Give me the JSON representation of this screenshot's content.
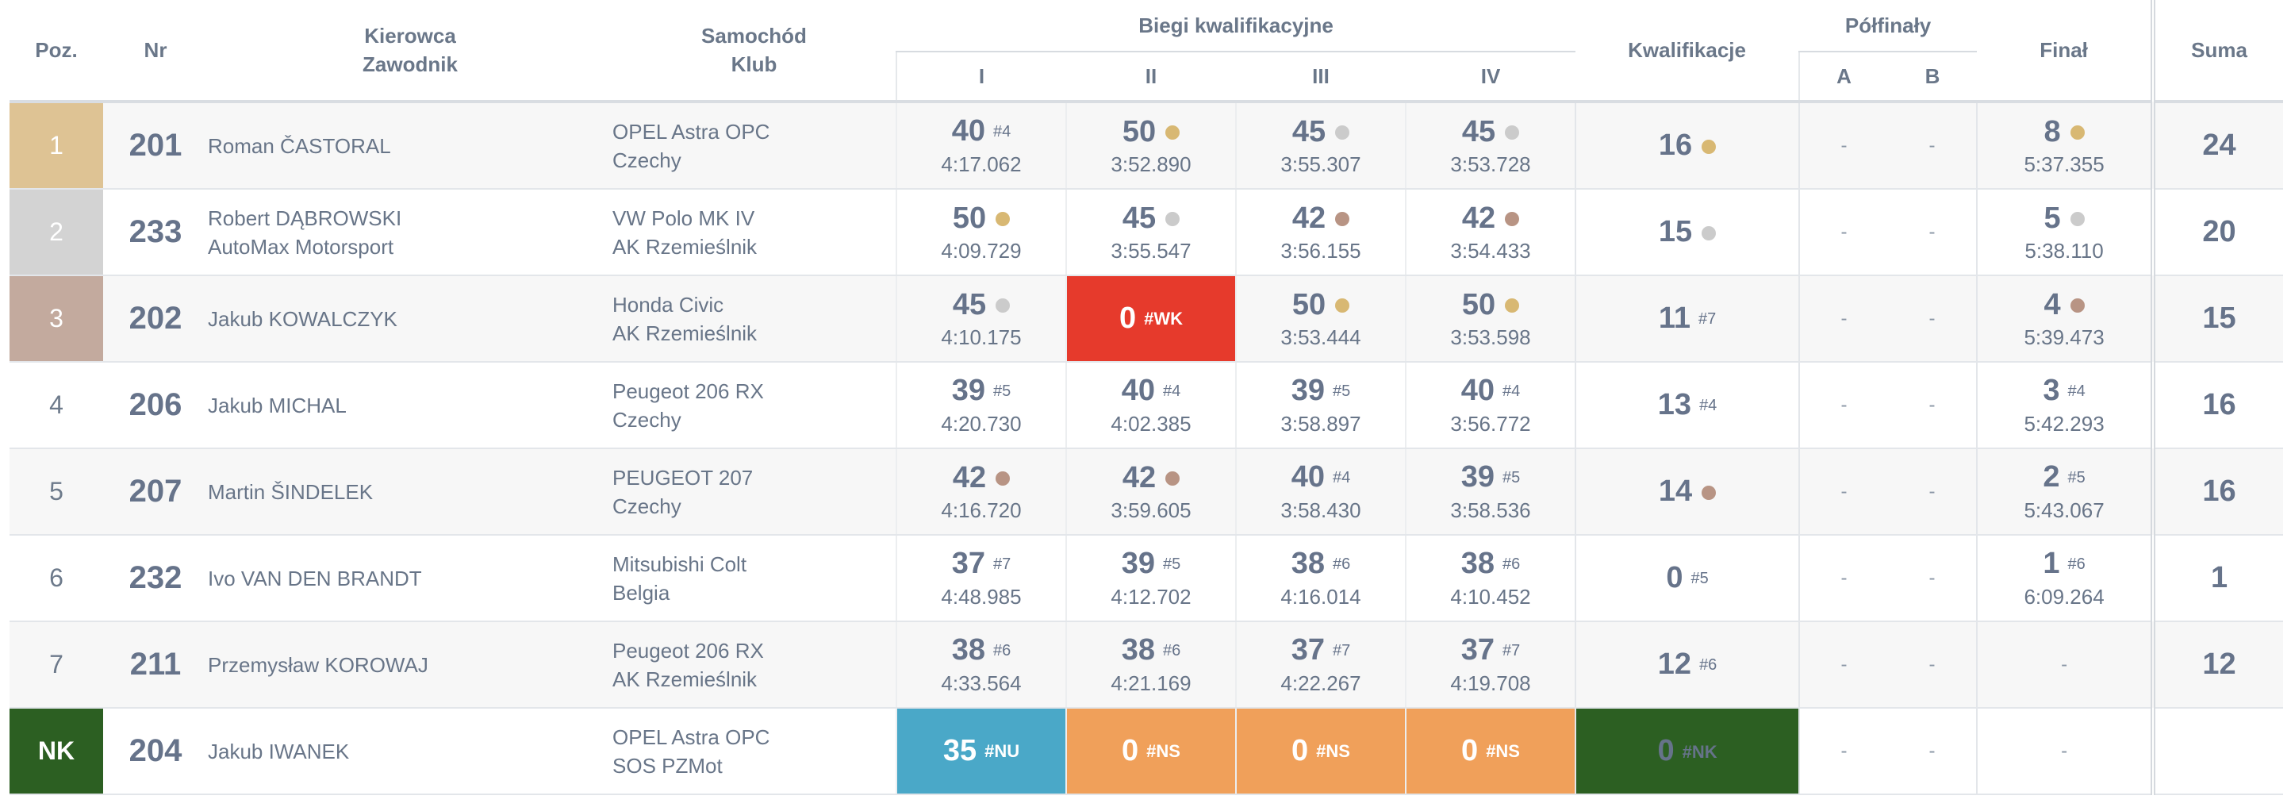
{
  "headers": {
    "pos": "Poz.",
    "nr": "Nr",
    "driver_1": "Kierowca",
    "driver_2": "Zawodnik",
    "car_1": "Samochód",
    "car_2": "Klub",
    "heats_group": "Biegi kwalifikacyjne",
    "heats": [
      "I",
      "II",
      "III",
      "IV"
    ],
    "qual": "Kwalifikacje",
    "semis_group": "Półfinały",
    "semis": [
      "A",
      "B"
    ],
    "final": "Finał",
    "sum": "Suma"
  },
  "colors": {
    "gold": "#dec394",
    "silver": "#d3d3d3",
    "bronze": "#c3aa9e",
    "wk_red": "#e63a2c",
    "nu_blue": "#4aa8c8",
    "ns_orange": "#f0a05a",
    "nk_green": "#2c5f22"
  },
  "rows": [
    {
      "pos": "1",
      "pos_style": "gold",
      "nr": "201",
      "driver": "Roman ČASTORAL",
      "team": "",
      "car": "OPEL Astra OPC",
      "club": "Czechy",
      "heats": [
        {
          "pts": "40",
          "rank": "#4",
          "medal": "",
          "time": "4:17.062",
          "flag": ""
        },
        {
          "pts": "50",
          "rank": "",
          "medal": "gold",
          "time": "3:52.890",
          "flag": ""
        },
        {
          "pts": "45",
          "rank": "",
          "medal": "silver",
          "time": "3:55.307",
          "flag": ""
        },
        {
          "pts": "45",
          "rank": "",
          "medal": "silver",
          "time": "3:53.728",
          "flag": ""
        }
      ],
      "qual": {
        "pts": "16",
        "rank": "",
        "medal": "gold",
        "flag": ""
      },
      "semi_a": "-",
      "semi_b": "-",
      "final": {
        "pts": "8",
        "rank": "",
        "medal": "gold",
        "time": "5:37.355"
      },
      "sum": "24"
    },
    {
      "pos": "2",
      "pos_style": "silver",
      "nr": "233",
      "driver": "Robert DĄBROWSKI",
      "team": "AutoMax Motorsport",
      "car": "VW Polo MK IV",
      "club": "AK Rzemieślnik",
      "heats": [
        {
          "pts": "50",
          "rank": "",
          "medal": "gold",
          "time": "4:09.729",
          "flag": ""
        },
        {
          "pts": "45",
          "rank": "",
          "medal": "silver",
          "time": "3:55.547",
          "flag": ""
        },
        {
          "pts": "42",
          "rank": "",
          "medal": "bronze",
          "time": "3:56.155",
          "flag": ""
        },
        {
          "pts": "42",
          "rank": "",
          "medal": "bronze",
          "time": "3:54.433",
          "flag": ""
        }
      ],
      "qual": {
        "pts": "15",
        "rank": "",
        "medal": "silver",
        "flag": ""
      },
      "semi_a": "-",
      "semi_b": "-",
      "final": {
        "pts": "5",
        "rank": "",
        "medal": "silver",
        "time": "5:38.110"
      },
      "sum": "20"
    },
    {
      "pos": "3",
      "pos_style": "bronze",
      "nr": "202",
      "driver": "Jakub KOWALCZYK",
      "team": "",
      "car": "Honda Civic",
      "club": "AK Rzemieślnik",
      "heats": [
        {
          "pts": "45",
          "rank": "",
          "medal": "silver",
          "time": "4:10.175",
          "flag": ""
        },
        {
          "pts": "0",
          "rank": "#WK",
          "medal": "",
          "time": "",
          "flag": "wk"
        },
        {
          "pts": "50",
          "rank": "",
          "medal": "gold",
          "time": "3:53.444",
          "flag": ""
        },
        {
          "pts": "50",
          "rank": "",
          "medal": "gold",
          "time": "3:53.598",
          "flag": ""
        }
      ],
      "qual": {
        "pts": "11",
        "rank": "#7",
        "medal": "",
        "flag": ""
      },
      "semi_a": "-",
      "semi_b": "-",
      "final": {
        "pts": "4",
        "rank": "",
        "medal": "bronze",
        "time": "5:39.473"
      },
      "sum": "15"
    },
    {
      "pos": "4",
      "pos_style": "",
      "nr": "206",
      "driver": "Jakub MICHAL",
      "team": "",
      "car": "Peugeot 206 RX",
      "club": "Czechy",
      "heats": [
        {
          "pts": "39",
          "rank": "#5",
          "medal": "",
          "time": "4:20.730",
          "flag": ""
        },
        {
          "pts": "40",
          "rank": "#4",
          "medal": "",
          "time": "4:02.385",
          "flag": ""
        },
        {
          "pts": "39",
          "rank": "#5",
          "medal": "",
          "time": "3:58.897",
          "flag": ""
        },
        {
          "pts": "40",
          "rank": "#4",
          "medal": "",
          "time": "3:56.772",
          "flag": ""
        }
      ],
      "qual": {
        "pts": "13",
        "rank": "#4",
        "medal": "",
        "flag": ""
      },
      "semi_a": "-",
      "semi_b": "-",
      "final": {
        "pts": "3",
        "rank": "#4",
        "medal": "",
        "time": "5:42.293"
      },
      "sum": "16"
    },
    {
      "pos": "5",
      "pos_style": "",
      "nr": "207",
      "driver": "Martin ŠINDELEK",
      "team": "",
      "car": "PEUGEOT 207",
      "club": "Czechy",
      "heats": [
        {
          "pts": "42",
          "rank": "",
          "medal": "bronze",
          "time": "4:16.720",
          "flag": ""
        },
        {
          "pts": "42",
          "rank": "",
          "medal": "bronze",
          "time": "3:59.605",
          "flag": ""
        },
        {
          "pts": "40",
          "rank": "#4",
          "medal": "",
          "time": "3:58.430",
          "flag": ""
        },
        {
          "pts": "39",
          "rank": "#5",
          "medal": "",
          "time": "3:58.536",
          "flag": ""
        }
      ],
      "qual": {
        "pts": "14",
        "rank": "",
        "medal": "bronze",
        "flag": ""
      },
      "semi_a": "-",
      "semi_b": "-",
      "final": {
        "pts": "2",
        "rank": "#5",
        "medal": "",
        "time": "5:43.067"
      },
      "sum": "16"
    },
    {
      "pos": "6",
      "pos_style": "",
      "nr": "232",
      "driver": "Ivo VAN DEN BRANDT",
      "team": "",
      "car": "Mitsubishi Colt",
      "club": "Belgia",
      "heats": [
        {
          "pts": "37",
          "rank": "#7",
          "medal": "",
          "time": "4:48.985",
          "flag": ""
        },
        {
          "pts": "39",
          "rank": "#5",
          "medal": "",
          "time": "4:12.702",
          "flag": ""
        },
        {
          "pts": "38",
          "rank": "#6",
          "medal": "",
          "time": "4:16.014",
          "flag": ""
        },
        {
          "pts": "38",
          "rank": "#6",
          "medal": "",
          "time": "4:10.452",
          "flag": ""
        }
      ],
      "qual": {
        "pts": "0",
        "rank": "#5",
        "medal": "",
        "flag": ""
      },
      "semi_a": "-",
      "semi_b": "-",
      "final": {
        "pts": "1",
        "rank": "#6",
        "medal": "",
        "time": "6:09.264"
      },
      "sum": "1"
    },
    {
      "pos": "7",
      "pos_style": "",
      "nr": "211",
      "driver": "Przemysław KOROWAJ",
      "team": "",
      "car": "Peugeot 206 RX",
      "club": "AK Rzemieślnik",
      "heats": [
        {
          "pts": "38",
          "rank": "#6",
          "medal": "",
          "time": "4:33.564",
          "flag": ""
        },
        {
          "pts": "38",
          "rank": "#6",
          "medal": "",
          "time": "4:21.169",
          "flag": ""
        },
        {
          "pts": "37",
          "rank": "#7",
          "medal": "",
          "time": "4:22.267",
          "flag": ""
        },
        {
          "pts": "37",
          "rank": "#7",
          "medal": "",
          "time": "4:19.708",
          "flag": ""
        }
      ],
      "qual": {
        "pts": "12",
        "rank": "#6",
        "medal": "",
        "flag": ""
      },
      "semi_a": "-",
      "semi_b": "-",
      "final": {
        "pts": "",
        "rank": "",
        "medal": "",
        "time": "",
        "empty": "-"
      },
      "sum": "12"
    },
    {
      "pos": "NK",
      "pos_style": "nk",
      "nr": "204",
      "driver": "Jakub IWANEK",
      "team": "",
      "car": "OPEL Astra OPC",
      "club": "SOS PZMot",
      "heats": [
        {
          "pts": "35",
          "rank": "#NU",
          "medal": "",
          "time": "",
          "flag": "nu"
        },
        {
          "pts": "0",
          "rank": "#NS",
          "medal": "",
          "time": "",
          "flag": "ns"
        },
        {
          "pts": "0",
          "rank": "#NS",
          "medal": "",
          "time": "",
          "flag": "ns"
        },
        {
          "pts": "0",
          "rank": "#NS",
          "medal": "",
          "time": "",
          "flag": "ns"
        }
      ],
      "qual": {
        "pts": "0",
        "rank": "#NK",
        "medal": "",
        "flag": "nk"
      },
      "semi_a": "-",
      "semi_b": "-",
      "final": {
        "pts": "",
        "rank": "",
        "medal": "",
        "time": "",
        "empty": "-"
      },
      "sum": ""
    }
  ]
}
